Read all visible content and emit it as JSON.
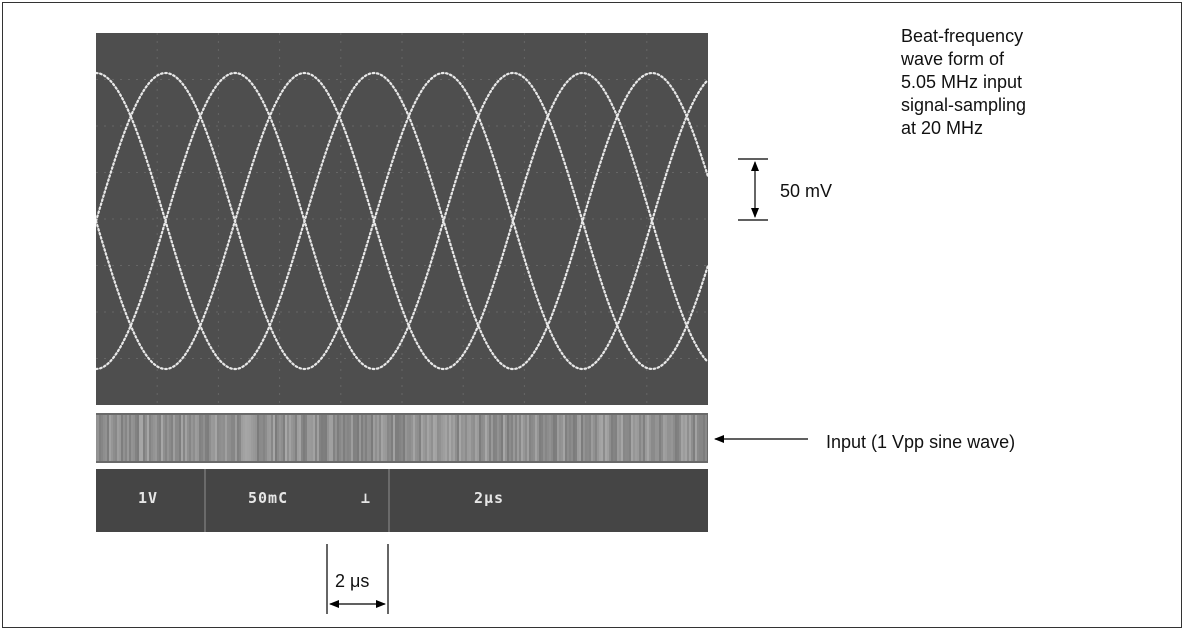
{
  "caption": [
    "Beat-frequency",
    "wave form of",
    "5.05 MHz input",
    "signal-sampling",
    "at 20 MHz"
  ],
  "amplitude_label": "50 mV",
  "input_label": "Input (1 Vpp sine wave)",
  "time_label": "2 μs",
  "readout": {
    "ch1": "1V",
    "ch2": "50mC",
    "trig": "⊥",
    "timebase": "2μs"
  }
}
